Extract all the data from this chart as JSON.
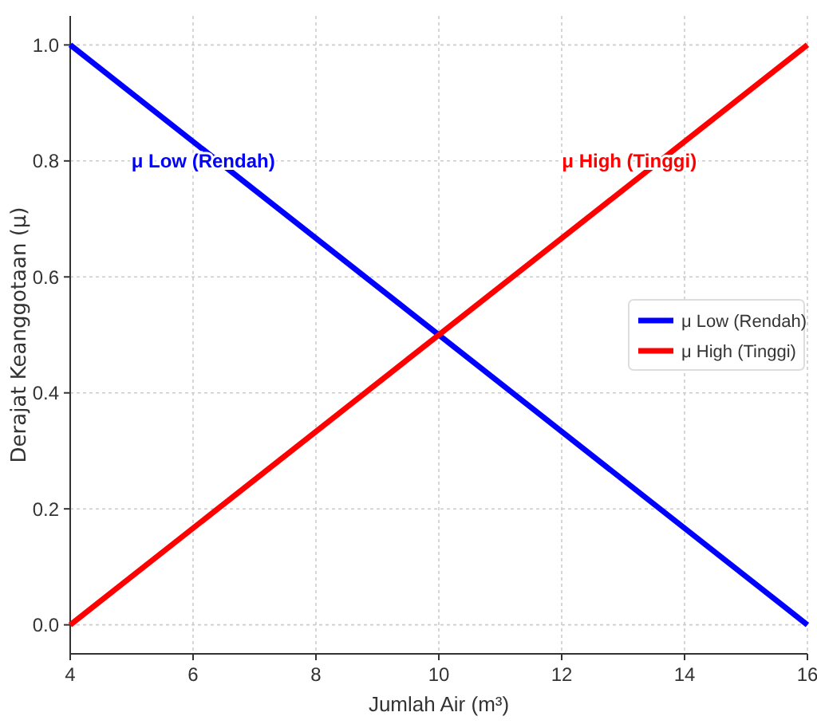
{
  "chart_data": {
    "type": "line",
    "xlabel": "Jumlah Air (m³)",
    "ylabel": "Derajat Keanggotaan (μ)",
    "x": [
      4,
      10,
      16
    ],
    "series": [
      {
        "name": "μ Low (Rendah)",
        "color": "#0000ff",
        "values": [
          1,
          0.5,
          0
        ]
      },
      {
        "name": "μ High (Tinggi)",
        "color": "#ff0000",
        "values": [
          0,
          0.5,
          1
        ]
      }
    ],
    "xlim": [
      4,
      16
    ],
    "xticks": [
      4,
      6,
      8,
      10,
      12,
      14,
      16
    ],
    "ylim": [
      -0.05,
      1.05
    ],
    "yticks": [
      {
        "value": 0,
        "label": "0.0"
      },
      {
        "value": 0.2,
        "label": "0.2"
      },
      {
        "value": 0.4,
        "label": "0.4"
      },
      {
        "value": 0.6,
        "label": "0.6"
      },
      {
        "value": 0.8,
        "label": "0.8"
      },
      {
        "value": 1,
        "label": "1.0"
      }
    ],
    "grid": true,
    "legend": "right",
    "marker": "none",
    "line_style": "solid",
    "annotations": [
      "μ Low (Rendah)",
      "μ High (Tinggi)"
    ]
  }
}
